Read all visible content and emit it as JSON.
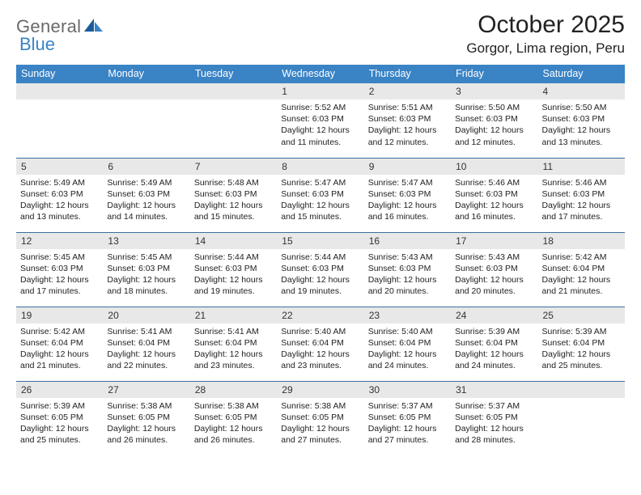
{
  "logo": {
    "part1": "General",
    "part2": "Blue"
  },
  "title": "October 2025",
  "location": "Gorgor, Lima region, Peru",
  "colors": {
    "header_bg": "#3a83c5",
    "row_divider": "#3a6ea5",
    "daynum_bg": "#e8e8e8",
    "logo_gray": "#6a6a6a",
    "logo_blue": "#3a83c5"
  },
  "day_headers": [
    "Sunday",
    "Monday",
    "Tuesday",
    "Wednesday",
    "Thursday",
    "Friday",
    "Saturday"
  ],
  "weeks": [
    [
      null,
      null,
      null,
      {
        "n": "1",
        "sunrise": "5:52 AM",
        "sunset": "6:03 PM",
        "daylight": "12 hours and 11 minutes."
      },
      {
        "n": "2",
        "sunrise": "5:51 AM",
        "sunset": "6:03 PM",
        "daylight": "12 hours and 12 minutes."
      },
      {
        "n": "3",
        "sunrise": "5:50 AM",
        "sunset": "6:03 PM",
        "daylight": "12 hours and 12 minutes."
      },
      {
        "n": "4",
        "sunrise": "5:50 AM",
        "sunset": "6:03 PM",
        "daylight": "12 hours and 13 minutes."
      }
    ],
    [
      {
        "n": "5",
        "sunrise": "5:49 AM",
        "sunset": "6:03 PM",
        "daylight": "12 hours and 13 minutes."
      },
      {
        "n": "6",
        "sunrise": "5:49 AM",
        "sunset": "6:03 PM",
        "daylight": "12 hours and 14 minutes."
      },
      {
        "n": "7",
        "sunrise": "5:48 AM",
        "sunset": "6:03 PM",
        "daylight": "12 hours and 15 minutes."
      },
      {
        "n": "8",
        "sunrise": "5:47 AM",
        "sunset": "6:03 PM",
        "daylight": "12 hours and 15 minutes."
      },
      {
        "n": "9",
        "sunrise": "5:47 AM",
        "sunset": "6:03 PM",
        "daylight": "12 hours and 16 minutes."
      },
      {
        "n": "10",
        "sunrise": "5:46 AM",
        "sunset": "6:03 PM",
        "daylight": "12 hours and 16 minutes."
      },
      {
        "n": "11",
        "sunrise": "5:46 AM",
        "sunset": "6:03 PM",
        "daylight": "12 hours and 17 minutes."
      }
    ],
    [
      {
        "n": "12",
        "sunrise": "5:45 AM",
        "sunset": "6:03 PM",
        "daylight": "12 hours and 17 minutes."
      },
      {
        "n": "13",
        "sunrise": "5:45 AM",
        "sunset": "6:03 PM",
        "daylight": "12 hours and 18 minutes."
      },
      {
        "n": "14",
        "sunrise": "5:44 AM",
        "sunset": "6:03 PM",
        "daylight": "12 hours and 19 minutes."
      },
      {
        "n": "15",
        "sunrise": "5:44 AM",
        "sunset": "6:03 PM",
        "daylight": "12 hours and 19 minutes."
      },
      {
        "n": "16",
        "sunrise": "5:43 AM",
        "sunset": "6:03 PM",
        "daylight": "12 hours and 20 minutes."
      },
      {
        "n": "17",
        "sunrise": "5:43 AM",
        "sunset": "6:03 PM",
        "daylight": "12 hours and 20 minutes."
      },
      {
        "n": "18",
        "sunrise": "5:42 AM",
        "sunset": "6:04 PM",
        "daylight": "12 hours and 21 minutes."
      }
    ],
    [
      {
        "n": "19",
        "sunrise": "5:42 AM",
        "sunset": "6:04 PM",
        "daylight": "12 hours and 21 minutes."
      },
      {
        "n": "20",
        "sunrise": "5:41 AM",
        "sunset": "6:04 PM",
        "daylight": "12 hours and 22 minutes."
      },
      {
        "n": "21",
        "sunrise": "5:41 AM",
        "sunset": "6:04 PM",
        "daylight": "12 hours and 23 minutes."
      },
      {
        "n": "22",
        "sunrise": "5:40 AM",
        "sunset": "6:04 PM",
        "daylight": "12 hours and 23 minutes."
      },
      {
        "n": "23",
        "sunrise": "5:40 AM",
        "sunset": "6:04 PM",
        "daylight": "12 hours and 24 minutes."
      },
      {
        "n": "24",
        "sunrise": "5:39 AM",
        "sunset": "6:04 PM",
        "daylight": "12 hours and 24 minutes."
      },
      {
        "n": "25",
        "sunrise": "5:39 AM",
        "sunset": "6:04 PM",
        "daylight": "12 hours and 25 minutes."
      }
    ],
    [
      {
        "n": "26",
        "sunrise": "5:39 AM",
        "sunset": "6:05 PM",
        "daylight": "12 hours and 25 minutes."
      },
      {
        "n": "27",
        "sunrise": "5:38 AM",
        "sunset": "6:05 PM",
        "daylight": "12 hours and 26 minutes."
      },
      {
        "n": "28",
        "sunrise": "5:38 AM",
        "sunset": "6:05 PM",
        "daylight": "12 hours and 26 minutes."
      },
      {
        "n": "29",
        "sunrise": "5:38 AM",
        "sunset": "6:05 PM",
        "daylight": "12 hours and 27 minutes."
      },
      {
        "n": "30",
        "sunrise": "5:37 AM",
        "sunset": "6:05 PM",
        "daylight": "12 hours and 27 minutes."
      },
      {
        "n": "31",
        "sunrise": "5:37 AM",
        "sunset": "6:05 PM",
        "daylight": "12 hours and 28 minutes."
      },
      null
    ]
  ],
  "labels": {
    "sunrise": "Sunrise:",
    "sunset": "Sunset:",
    "daylight": "Daylight:"
  }
}
